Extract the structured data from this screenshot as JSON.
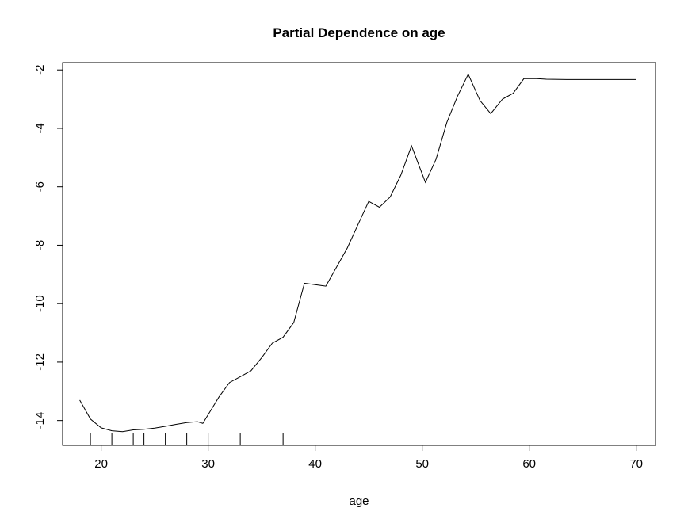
{
  "chart_data": {
    "type": "line",
    "title": "Partial Dependence on age",
    "xlabel": "age",
    "ylabel": "",
    "xlim": [
      16.4,
      71.8
    ],
    "ylim": [
      -14.85,
      -1.75
    ],
    "x_ticks": [
      20,
      30,
      40,
      50,
      60,
      70
    ],
    "y_ticks": [
      -2,
      -4,
      -6,
      -8,
      -10,
      -12,
      -14
    ],
    "grid": false,
    "legend": "none",
    "series": [
      {
        "color": "#000000",
        "x": [
          18,
          19,
          20,
          21,
          22,
          23,
          24,
          25,
          26,
          27,
          28,
          29,
          29.5,
          30,
          31,
          32,
          33,
          34,
          35,
          36,
          37,
          38,
          39,
          40,
          41,
          42,
          43,
          44,
          45,
          46,
          47,
          48,
          49,
          50.3,
          51.3,
          52.3,
          53.3,
          54.3,
          55.4,
          56.4,
          57.5,
          58.5,
          59.5,
          60.7,
          61.6,
          63.5,
          65,
          70
        ],
        "y": [
          -13.3,
          -13.95,
          -14.25,
          -14.35,
          -14.38,
          -14.32,
          -14.3,
          -14.26,
          -14.2,
          -14.13,
          -14.07,
          -14.04,
          -14.1,
          -13.8,
          -13.2,
          -12.7,
          -12.5,
          -12.3,
          -11.85,
          -11.35,
          -11.15,
          -10.65,
          -9.3,
          -9.35,
          -9.4,
          -8.75,
          -8.1,
          -7.3,
          -6.5,
          -6.7,
          -6.35,
          -5.6,
          -4.6,
          -5.85,
          -5.05,
          -3.8,
          -2.9,
          -2.15,
          -3.05,
          -3.5,
          -3.0,
          -2.8,
          -2.3,
          -2.3,
          -2.32,
          -2.33,
          -2.33,
          -2.33
        ]
      }
    ],
    "rug": [
      19,
      21,
      23,
      24,
      26,
      28,
      30,
      33,
      37
    ]
  }
}
